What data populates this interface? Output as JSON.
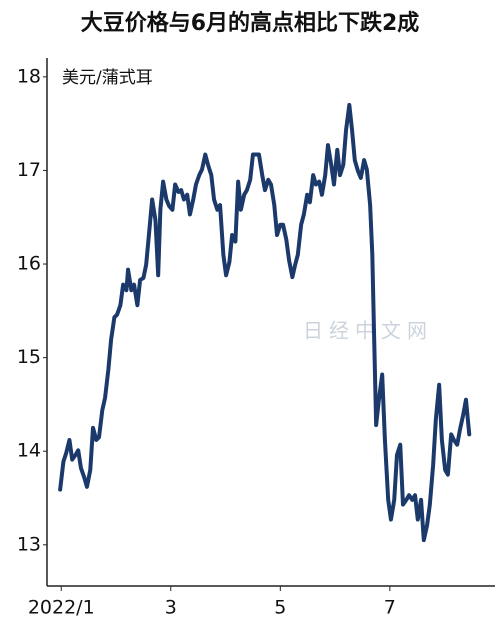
{
  "chart_data": {
    "type": "line",
    "title": "大豆价格与6月的高点相比下跌2成",
    "ylabel": "美元/蒲式耳",
    "annotations": [
      "日经中文网"
    ],
    "x": [
      0.98,
      1.04,
      1.09,
      1.15,
      1.2,
      1.26,
      1.31,
      1.36,
      1.42,
      1.47,
      1.53,
      1.58,
      1.64,
      1.69,
      1.75,
      1.8,
      1.86,
      1.91,
      1.97,
      2.02,
      2.08,
      2.13,
      2.19,
      2.22,
      2.28,
      2.33,
      2.39,
      2.44,
      2.5,
      2.55,
      2.61,
      2.66,
      2.72,
      2.77,
      2.81,
      2.86,
      2.92,
      2.97,
      3.03,
      3.08,
      3.14,
      3.19,
      3.24,
      3.3,
      3.35,
      3.41,
      3.46,
      3.52,
      3.57,
      3.63,
      3.68,
      3.74,
      3.79,
      3.85,
      3.9,
      3.96,
      4.01,
      4.07,
      4.12,
      4.18,
      4.23,
      4.28,
      4.34,
      4.39,
      4.45,
      4.5,
      4.56,
      4.61,
      4.67,
      4.72,
      4.78,
      4.83,
      4.89,
      4.94,
      5.0,
      5.05,
      5.11,
      5.16,
      5.22,
      5.27,
      5.32,
      5.38,
      5.43,
      5.49,
      5.54,
      5.6,
      5.65,
      5.71,
      5.76,
      5.82,
      5.87,
      5.93,
      5.98,
      6.04,
      6.09,
      6.15,
      6.2,
      6.26,
      6.31,
      6.36,
      6.42,
      6.47,
      6.53,
      6.58,
      6.64,
      6.68,
      6.71,
      6.75,
      6.8,
      6.86,
      6.91,
      6.97,
      7.02,
      7.08,
      7.13,
      7.19,
      7.24,
      7.3,
      7.35,
      7.41,
      7.46,
      7.51,
      7.57,
      7.62,
      7.68,
      7.73,
      7.79,
      7.84,
      7.9,
      7.95,
      8.01,
      8.06,
      8.12,
      8.17,
      8.23,
      8.28,
      8.34,
      8.39,
      8.45
    ],
    "series": [
      {
        "color": "#1b3a6b",
        "values": [
          13.59,
          13.89,
          13.98,
          14.12,
          13.91,
          13.96,
          14.01,
          13.82,
          13.72,
          13.62,
          13.8,
          14.25,
          14.12,
          14.15,
          14.44,
          14.57,
          14.87,
          15.19,
          15.43,
          15.46,
          15.56,
          15.78,
          15.72,
          15.94,
          15.72,
          15.78,
          15.56,
          15.83,
          15.85,
          15.99,
          16.37,
          16.69,
          16.47,
          15.88,
          16.58,
          16.88,
          16.69,
          16.62,
          16.58,
          16.85,
          16.77,
          16.79,
          16.69,
          16.74,
          16.53,
          16.69,
          16.85,
          16.95,
          17.01,
          17.17,
          17.06,
          16.95,
          16.69,
          16.58,
          16.63,
          16.1,
          15.88,
          16.02,
          16.31,
          16.24,
          16.88,
          16.58,
          16.74,
          16.79,
          16.9,
          17.17,
          17.17,
          17.17,
          16.95,
          16.79,
          16.9,
          16.85,
          16.63,
          16.31,
          16.42,
          16.42,
          16.26,
          16.04,
          15.86,
          15.99,
          16.1,
          16.42,
          16.53,
          16.74,
          16.66,
          16.95,
          16.85,
          16.88,
          16.74,
          16.95,
          17.27,
          17.06,
          16.85,
          17.22,
          16.95,
          17.06,
          17.43,
          17.7,
          17.43,
          17.11,
          16.99,
          16.92,
          17.11,
          17.01,
          16.63,
          16.1,
          15.3,
          14.28,
          14.55,
          14.82,
          14.12,
          13.48,
          13.27,
          13.48,
          13.96,
          14.07,
          13.43,
          13.48,
          13.53,
          13.48,
          13.53,
          13.27,
          13.48,
          13.05,
          13.21,
          13.43,
          13.85,
          14.34,
          14.71,
          14.12,
          13.8,
          13.75,
          14.18,
          14.12,
          14.07,
          14.23,
          14.39,
          14.55,
          14.18
        ]
      }
    ],
    "xlim": [
      0.74,
      8.92
    ],
    "xticks": [
      {
        "value": 1,
        "label": "2022/1"
      },
      3,
      5,
      7
    ],
    "ylim": [
      12.56,
      18.18
    ],
    "yticks": [
      13,
      14,
      15,
      16,
      17,
      18
    ],
    "grid": false
  }
}
